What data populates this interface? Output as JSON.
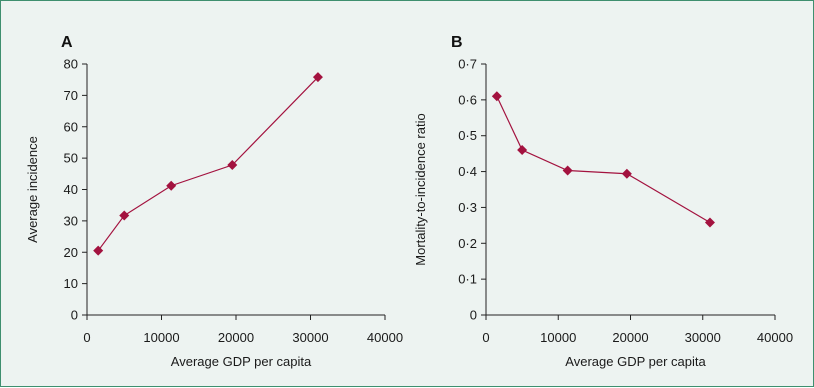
{
  "chart_data": [
    {
      "type": "line",
      "panel_label": "A",
      "xlabel": "Average GDP per capita",
      "ylabel": "Average incidence",
      "xlim": [
        0,
        40000
      ],
      "ylim": [
        0,
        80
      ],
      "x_ticks": [
        0,
        10000,
        20000,
        30000,
        40000
      ],
      "x_tick_labels": [
        "0",
        "10000",
        "20000",
        "30000",
        "40000"
      ],
      "y_ticks": [
        0,
        10,
        20,
        30,
        40,
        50,
        60,
        70,
        80
      ],
      "y_tick_labels": [
        "0",
        "10",
        "20",
        "30",
        "40",
        "50",
        "60",
        "70",
        "80"
      ],
      "grid": false,
      "series": [
        {
          "x": [
            1500,
            5000,
            11300,
            19500,
            31000
          ],
          "y": [
            20.5,
            31.7,
            41.2,
            47.8,
            75.8
          ],
          "color": "#a3123f",
          "marker": "diamond"
        }
      ]
    },
    {
      "type": "line",
      "panel_label": "B",
      "xlabel": "Average GDP per capita",
      "ylabel": "Mortality-to-incidence ratio",
      "xlim": [
        0,
        40000
      ],
      "ylim": [
        0,
        0.7
      ],
      "x_ticks": [
        0,
        10000,
        20000,
        30000,
        40000
      ],
      "x_tick_labels": [
        "0",
        "10000",
        "20000",
        "30000",
        "40000"
      ],
      "y_ticks": [
        0,
        0.1,
        0.2,
        0.3,
        0.4,
        0.5,
        0.6,
        0.7
      ],
      "y_tick_labels": [
        "0",
        "0·1",
        "0·2",
        "0·3",
        "0·4",
        "0·5",
        "0·6",
        "0·7"
      ],
      "grid": false,
      "series": [
        {
          "x": [
            1500,
            5000,
            11300,
            19500,
            31000
          ],
          "y": [
            0.61,
            0.46,
            0.403,
            0.394,
            0.258
          ],
          "color": "#a3123f",
          "marker": "diamond"
        }
      ]
    }
  ]
}
